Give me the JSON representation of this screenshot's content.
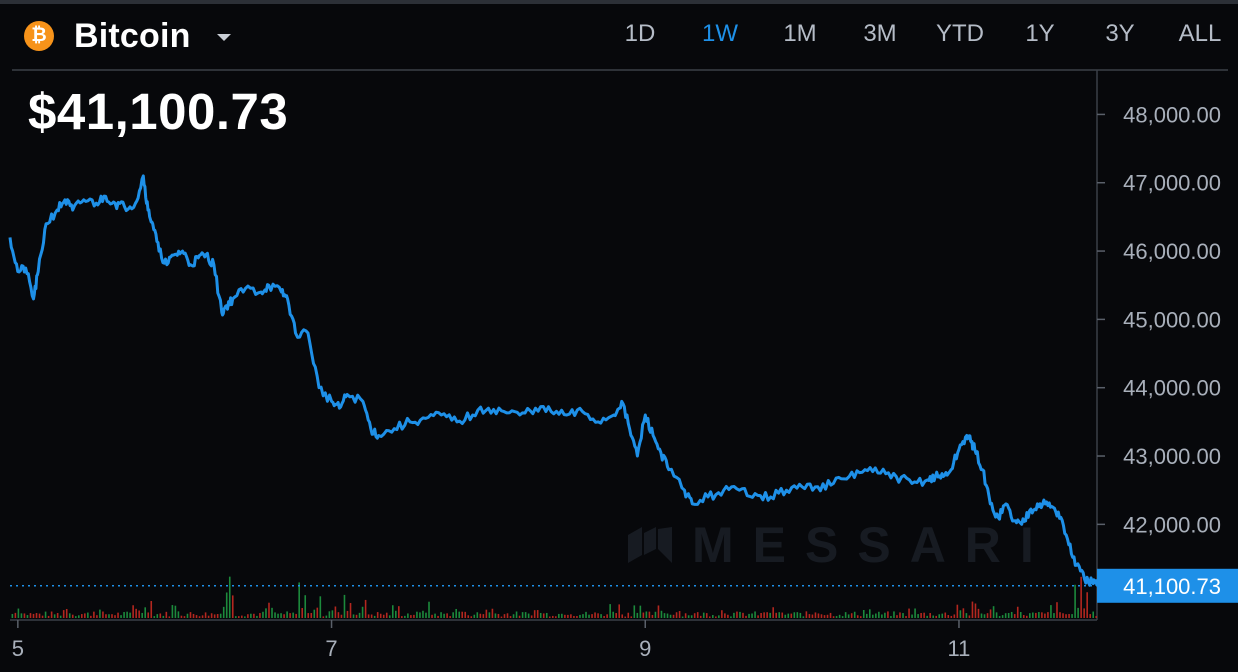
{
  "header": {
    "asset_icon": "bitcoin-icon",
    "asset_icon_glyph": "₿",
    "asset_name": "Bitcoin",
    "range_tabs": [
      {
        "label": "1D",
        "active": false
      },
      {
        "label": "1W",
        "active": true
      },
      {
        "label": "1M",
        "active": false
      },
      {
        "label": "3M",
        "active": false
      },
      {
        "label": "YTD",
        "active": false
      },
      {
        "label": "1Y",
        "active": false
      },
      {
        "label": "3Y",
        "active": false
      },
      {
        "label": "ALL",
        "active": false
      }
    ]
  },
  "price": {
    "current_display": "$41,100.73"
  },
  "watermark": {
    "text": "MESSARI"
  },
  "colors": {
    "background": "#07080b",
    "line": "#1e90e8",
    "active_tab": "#1e90e8",
    "volume_up": "#1c8a3c",
    "volume_down": "#b3271f",
    "bitcoin_orange": "#f7931a"
  },
  "chart_data": {
    "type": "line",
    "title": "",
    "xlabel": "",
    "ylabel": "",
    "x_ticks": [
      "5",
      "7",
      "9",
      "11"
    ],
    "x_range": [
      4.95,
      11.88
    ],
    "ylim": [
      40600,
      48650
    ],
    "y_ticks": [
      "48,000.00",
      "47,000.00",
      "46,000.00",
      "45,000.00",
      "44,000.00",
      "43,000.00",
      "42,000.00"
    ],
    "last_price_label": "41,100.73",
    "last_price": 41100.73,
    "grid": false,
    "series": [
      {
        "x": [
          4.95,
          5.0,
          5.05,
          5.1,
          5.13,
          5.18,
          5.25,
          5.3,
          5.35,
          5.42,
          5.5,
          5.56,
          5.62,
          5.68,
          5.75,
          5.8,
          5.83,
          5.86,
          5.9,
          5.95,
          6.0,
          6.05,
          6.1,
          6.15,
          6.2,
          6.25,
          6.3,
          6.33,
          6.37,
          6.45,
          6.55,
          6.6,
          6.68,
          6.72,
          6.77,
          6.85,
          6.92,
          7.0,
          7.05,
          7.1,
          7.2,
          7.25,
          7.3,
          7.4,
          7.5,
          7.6,
          7.7,
          7.8,
          7.9,
          8.0,
          8.1,
          8.2,
          8.3,
          8.4,
          8.5,
          8.6,
          8.7,
          8.8,
          8.85,
          8.9,
          8.95,
          9.0,
          9.05,
          9.1,
          9.15,
          9.25,
          9.3,
          9.4,
          9.5,
          9.6,
          9.7,
          9.8,
          9.9,
          10.0,
          10.1,
          10.2,
          10.3,
          10.4,
          10.5,
          10.6,
          10.7,
          10.8,
          10.85,
          10.9,
          10.95,
          11.0,
          11.05,
          11.08,
          11.1,
          11.15,
          11.2,
          11.25,
          11.3,
          11.35,
          11.4,
          11.45,
          11.5,
          11.55,
          11.6,
          11.65,
          11.7,
          11.75,
          11.8,
          11.85,
          11.88
        ],
        "y": [
          46200,
          45700,
          45750,
          45300,
          45700,
          46400,
          46600,
          46750,
          46600,
          46750,
          46700,
          46800,
          46700,
          46650,
          46700,
          47100,
          46600,
          46400,
          46000,
          45800,
          45950,
          46000,
          45800,
          45900,
          45950,
          45800,
          45100,
          45200,
          45300,
          45450,
          45400,
          45500,
          45400,
          45300,
          44800,
          44800,
          44000,
          43800,
          43700,
          43900,
          43800,
          43400,
          43300,
          43400,
          43500,
          43550,
          43600,
          43500,
          43600,
          43700,
          43650,
          43600,
          43700,
          43650,
          43600,
          43650,
          43500,
          43600,
          43800,
          43400,
          43000,
          43600,
          43300,
          43050,
          42800,
          42500,
          42300,
          42400,
          42500,
          42500,
          42450,
          42400,
          42500,
          42550,
          42550,
          42600,
          42700,
          42800,
          42750,
          42700,
          42600,
          42650,
          42700,
          42700,
          42800,
          43100,
          43300,
          43200,
          43100,
          42800,
          42300,
          42100,
          42300,
          42050,
          42000,
          42200,
          42300,
          42300,
          42250,
          42100,
          41700,
          41400,
          41200,
          41150,
          41100
        ]
      }
    ],
    "volume": {
      "note": "relative volume bars (0-1)",
      "x": [
        5.0,
        5.3,
        5.5,
        5.75,
        5.83,
        6.0,
        6.3,
        6.35,
        6.6,
        6.8,
        6.9,
        7.0,
        7.1,
        7.2,
        7.4,
        7.6,
        7.8,
        8.0,
        8.3,
        8.5,
        8.8,
        8.95,
        9.1,
        9.2,
        9.5,
        9.8,
        10.1,
        10.4,
        10.7,
        11.0,
        11.1,
        11.2,
        11.35,
        11.6,
        11.75,
        11.8
      ],
      "values": [
        0.3,
        0.25,
        0.2,
        0.35,
        0.45,
        0.3,
        0.35,
        0.95,
        0.3,
        0.7,
        0.4,
        0.3,
        0.45,
        0.35,
        0.25,
        0.3,
        0.2,
        0.25,
        0.2,
        0.2,
        0.3,
        0.4,
        0.25,
        0.2,
        0.2,
        0.2,
        0.2,
        0.2,
        0.2,
        0.35,
        0.3,
        0.25,
        0.3,
        0.3,
        0.75,
        0.55
      ]
    }
  }
}
